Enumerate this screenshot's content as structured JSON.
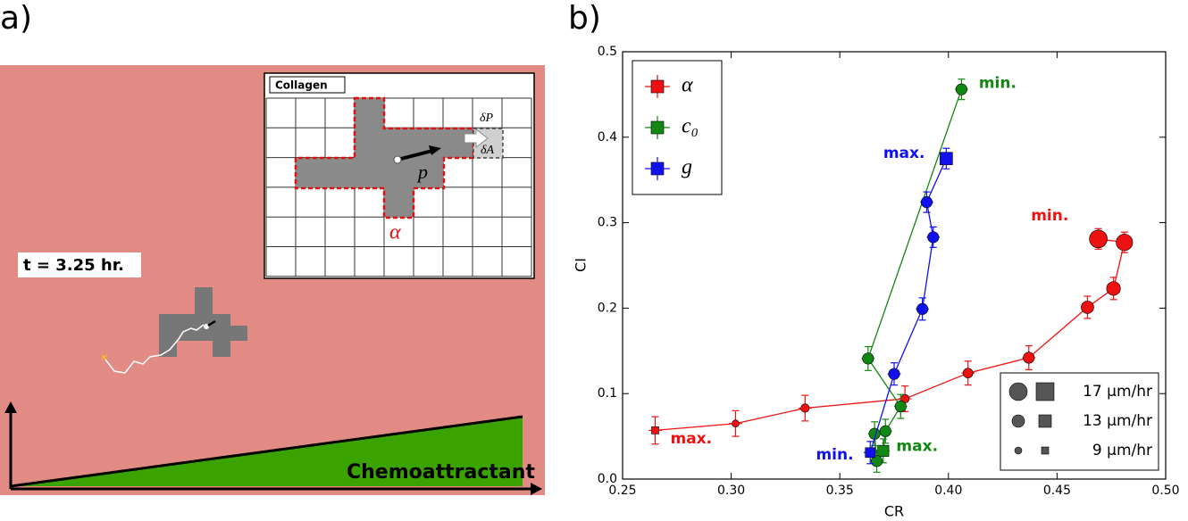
{
  "panel_a": {
    "label": "a)",
    "inset_title": "Collagen",
    "delta_p": "δP",
    "delta_a": "δA",
    "polarization": "p⃗",
    "cell_label": "α",
    "time": "t = 3.25 hr.",
    "gradient": "Chemoattractant"
  },
  "chart_data": {
    "type": "scatter",
    "panel_label": "b)",
    "xlabel": "CR",
    "ylabel": "CI",
    "xlim": [
      0.25,
      0.5
    ],
    "ylim": [
      0,
      0.5
    ],
    "xticks": [
      0.25,
      {
        "value": 0.3,
        "label": "0.30"
      },
      0.35,
      {
        "value": 0.4,
        "label": "0.40"
      },
      0.45,
      {
        "value": 0.5,
        "label": "0.50"
      }
    ],
    "yticks": [
      {
        "value": 0,
        "label": "0.0"
      },
      0.1,
      0.2,
      0.3,
      0.4,
      0.5
    ],
    "legend": "upper left",
    "series": [
      {
        "name": "α",
        "color": "#ee1111",
        "x": [
          0.265,
          0.302,
          0.334,
          0.38,
          0.409,
          0.437,
          0.464,
          0.476,
          0.481,
          0.469
        ],
        "y": [
          0.057,
          0.065,
          0.083,
          0.094,
          0.124,
          0.142,
          0.201,
          0.223,
          0.277,
          0.281
        ],
        "xerr": [
          0.003,
          0.003,
          0.003,
          0.003,
          0.003,
          0.003,
          0.003,
          0.003,
          0.003,
          0.003
        ],
        "yerr": [
          0.016,
          0.015,
          0.015,
          0.015,
          0.014,
          0.014,
          0.013,
          0.013,
          0.012,
          0.012
        ],
        "speeds": [
          9,
          9,
          10,
          10,
          11,
          12,
          13,
          14,
          16,
          17
        ],
        "markers": [
          "s",
          "o",
          "o",
          "o",
          "o",
          "o",
          "o",
          "o",
          "o",
          "o"
        ]
      },
      {
        "name": "c₀",
        "color": "#118811",
        "x": [
          0.406,
          0.363,
          0.378,
          0.371,
          0.37,
          0.367,
          0.366
        ],
        "y": [
          0.456,
          0.141,
          0.085,
          0.056,
          0.033,
          0.021,
          0.053
        ],
        "xerr": [
          0.003,
          0.003,
          0.003,
          0.003,
          0.003,
          0.003,
          0.003
        ],
        "yerr": [
          0.012,
          0.014,
          0.014,
          0.014,
          0.014,
          0.013,
          0.014
        ],
        "speeds": [
          12,
          12,
          12,
          12,
          12,
          12,
          12
        ],
        "markers": [
          "o",
          "o",
          "o",
          "o",
          "s",
          "o",
          "o"
        ]
      },
      {
        "name": "g",
        "color": "#1111ee",
        "x": [
          0.364,
          0.375,
          0.388,
          0.393,
          0.39,
          0.399
        ],
        "y": [
          0.031,
          0.123,
          0.199,
          0.283,
          0.324,
          0.375
        ],
        "xerr": [
          0.003,
          0.003,
          0.003,
          0.003,
          0.003,
          0.003
        ],
        "yerr": [
          0.013,
          0.013,
          0.013,
          0.012,
          0.012,
          0.012
        ],
        "speeds": [
          11,
          12,
          12,
          12,
          12,
          13
        ],
        "markers": [
          "s",
          "o",
          "o",
          "o",
          "o",
          "s"
        ]
      }
    ],
    "size_legend": [
      {
        "value": 17,
        "label": "17 µm/hr"
      },
      {
        "value": 13,
        "label": "13 µm/hr"
      },
      {
        "value": 9,
        "label": "9 µm/hr"
      }
    ],
    "size_legend_loc": "lower right",
    "annotations": [
      {
        "text": "min.",
        "color": "#ee1111",
        "x": 0.438,
        "y": 0.308
      },
      {
        "text": "max.",
        "color": "#ee1111",
        "x": 0.272,
        "y": 0.047
      },
      {
        "text": "min.",
        "color": "#118811",
        "x": 0.414,
        "y": 0.463
      },
      {
        "text": "max.",
        "color": "#118811",
        "x": 0.376,
        "y": 0.038
      },
      {
        "text": "max.",
        "color": "#1111ee",
        "x": 0.37,
        "y": 0.381
      },
      {
        "text": "min.",
        "color": "#1111ee",
        "x": 0.339,
        "y": 0.028
      }
    ]
  }
}
